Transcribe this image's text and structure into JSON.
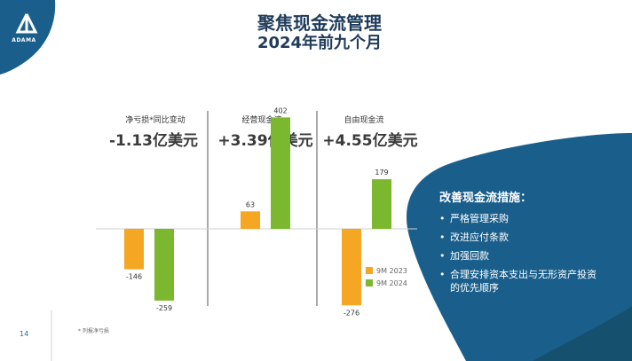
{
  "logo": {
    "text": "ADAMA"
  },
  "title": {
    "line1": "聚焦现金流管理",
    "line2": "2024年前九个月"
  },
  "columns": [
    {
      "label": "净亏损*同比变动",
      "value": "-1.13亿美元"
    },
    {
      "label": "经营现金流",
      "value": "+3.39亿美元"
    },
    {
      "label": "自由现金流",
      "value": "+4.55亿美元"
    }
  ],
  "chart_data": {
    "type": "bar",
    "categories": [
      "净亏损*同比变动",
      "经营现金流",
      "自由现金流"
    ],
    "series": [
      {
        "name": "9M 2023",
        "values": [
          -146,
          63,
          -276
        ]
      },
      {
        "name": "9M 2024",
        "values": [
          -259,
          402,
          179
        ]
      }
    ],
    "colors": {
      "9M 2023": "#f5a623",
      "9M 2024": "#7cb82f"
    },
    "value_labels": true
  },
  "legend": [
    {
      "label": "9M 2023",
      "color": "#f5a623"
    },
    {
      "label": "9M 2024",
      "color": "#7cb82f"
    }
  ],
  "panel": {
    "title": "改善现金流措施：",
    "items": [
      "严格管理采购",
      "改进应付条款",
      "加强回款",
      "合理安排资本支出与无形资产投资的优先顺序"
    ]
  },
  "footer": {
    "page_number": "14",
    "footnote": "* 列报净亏损"
  },
  "colors": {
    "brand_blue": "#1a5f8c",
    "dark_teal": "#15516f",
    "title": "#1f3b5a"
  }
}
